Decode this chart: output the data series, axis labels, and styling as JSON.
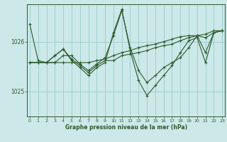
{
  "bg_color": "#cce8e8",
  "grid_color": "#99cccc",
  "line_color": "#2d5a2d",
  "marker_color": "#2d5a2d",
  "xlabel": "Graphe pression niveau de la mer (hPa)",
  "xlabel_color": "#2d5a2d",
  "tick_color": "#2d5a2d",
  "ylim": [
    1024.5,
    1026.75
  ],
  "xlim": [
    -0.3,
    23.3
  ],
  "yticks": [
    1025,
    1026
  ],
  "xticks": [
    0,
    1,
    2,
    3,
    4,
    5,
    6,
    7,
    8,
    9,
    10,
    11,
    12,
    13,
    14,
    15,
    16,
    17,
    18,
    19,
    20,
    21,
    22,
    23
  ],
  "series": [
    [
      1026.35,
      1025.62,
      1025.58,
      1025.58,
      1025.72,
      1025.72,
      1025.55,
      1025.42,
      1025.55,
      1025.68,
      1026.12,
      1026.62,
      1025.88,
      1025.42,
      1025.18,
      1025.32,
      1025.48,
      1025.58,
      1025.68,
      1025.88,
      1026.12,
      1025.78,
      1026.18,
      1026.22
    ],
    [
      1025.58,
      1025.58,
      1025.58,
      1025.72,
      1025.85,
      1025.65,
      1025.52,
      1025.38,
      1025.52,
      1025.62,
      1025.62,
      1025.72,
      1025.75,
      1025.78,
      1025.82,
      1025.88,
      1025.92,
      1025.95,
      1026.02,
      1026.08,
      1026.12,
      1026.08,
      1026.18,
      1026.22
    ],
    [
      1025.58,
      1025.58,
      1025.58,
      1025.58,
      1025.58,
      1025.58,
      1025.58,
      1025.58,
      1025.62,
      1025.65,
      1025.72,
      1025.78,
      1025.82,
      1025.88,
      1025.92,
      1025.95,
      1026.0,
      1026.05,
      1026.1,
      1026.12,
      1026.12,
      1026.15,
      1026.22,
      1026.22
    ],
    [
      1025.58,
      1025.58,
      1025.58,
      1025.72,
      1025.85,
      1025.62,
      1025.48,
      1025.32,
      1025.48,
      1025.58,
      1026.18,
      1026.65,
      1025.82,
      1025.22,
      1024.92,
      1025.12,
      1025.32,
      1025.52,
      1025.78,
      1026.02,
      1026.08,
      1025.58,
      1026.18,
      1026.22
    ]
  ]
}
